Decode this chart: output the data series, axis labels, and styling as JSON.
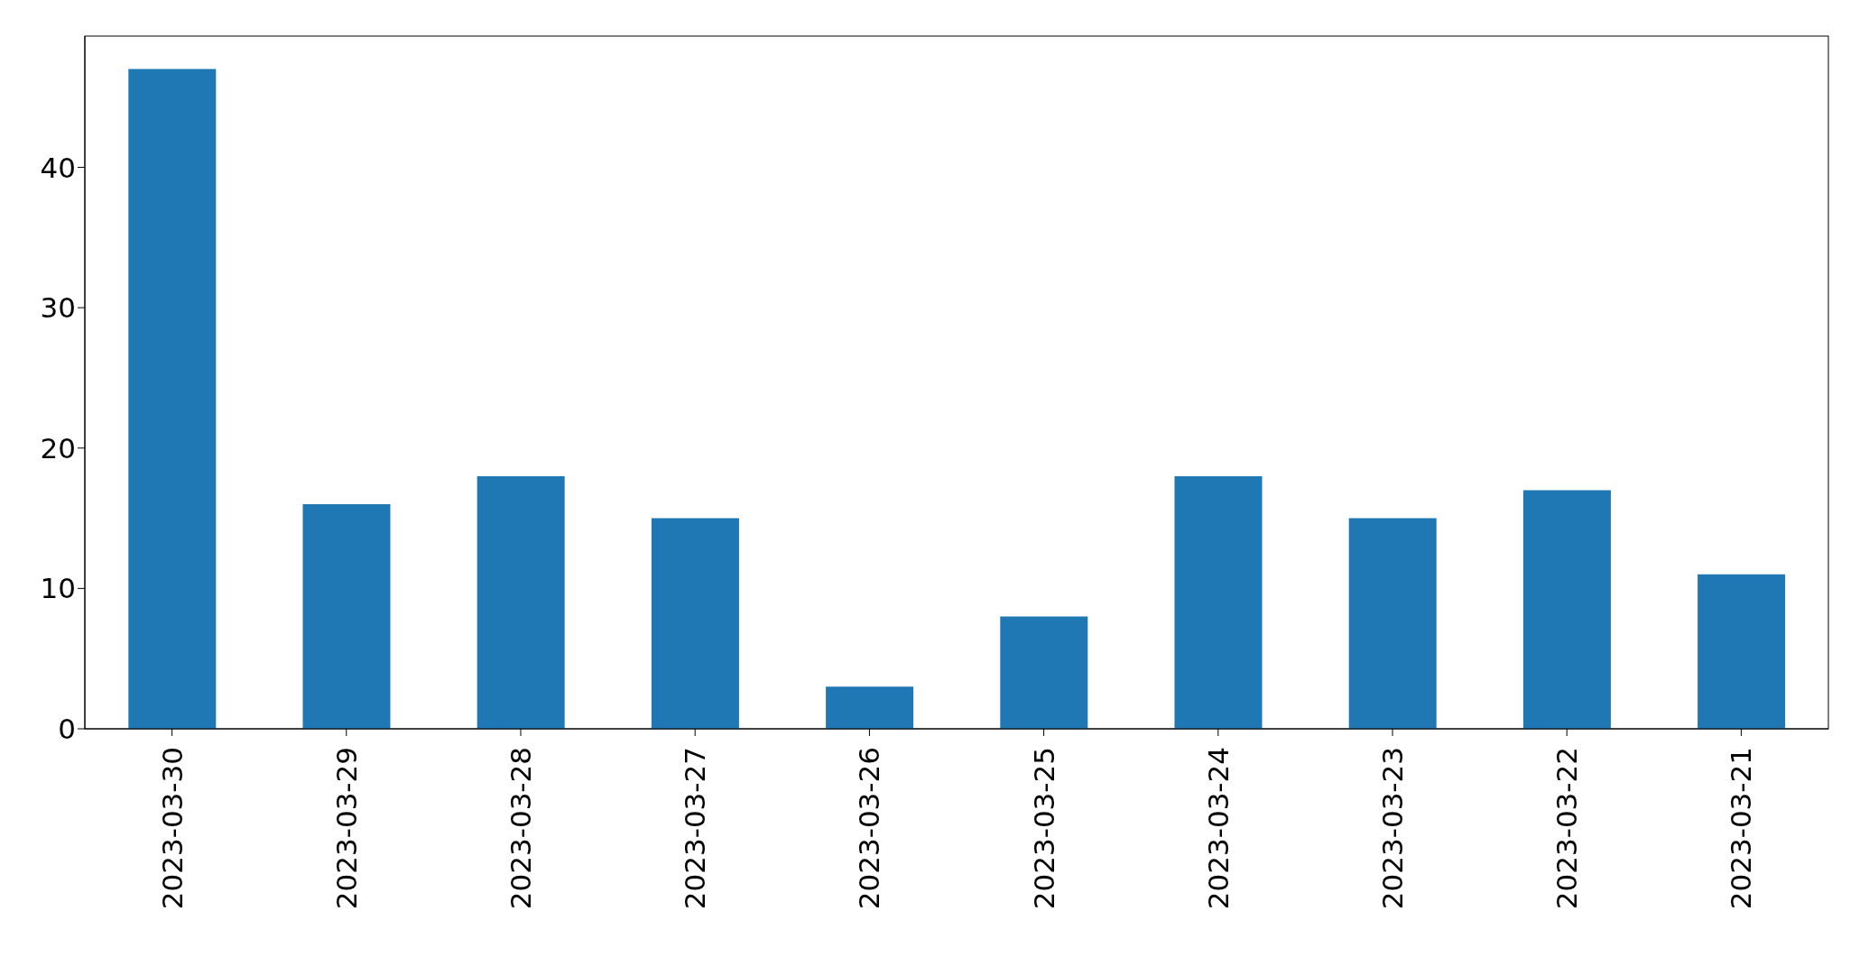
{
  "chart_data": {
    "type": "bar",
    "categories": [
      "2023-03-30",
      "2023-03-29",
      "2023-03-28",
      "2023-03-27",
      "2023-03-26",
      "2023-03-25",
      "2023-03-24",
      "2023-03-23",
      "2023-03-22",
      "2023-03-21"
    ],
    "values": [
      47,
      16,
      18,
      15,
      3,
      8,
      18,
      15,
      17,
      11
    ],
    "color": "#1f77b4",
    "ylim": [
      0,
      49.35
    ],
    "yticks": [
      0,
      10,
      20,
      30,
      40
    ],
    "grid": false
  }
}
